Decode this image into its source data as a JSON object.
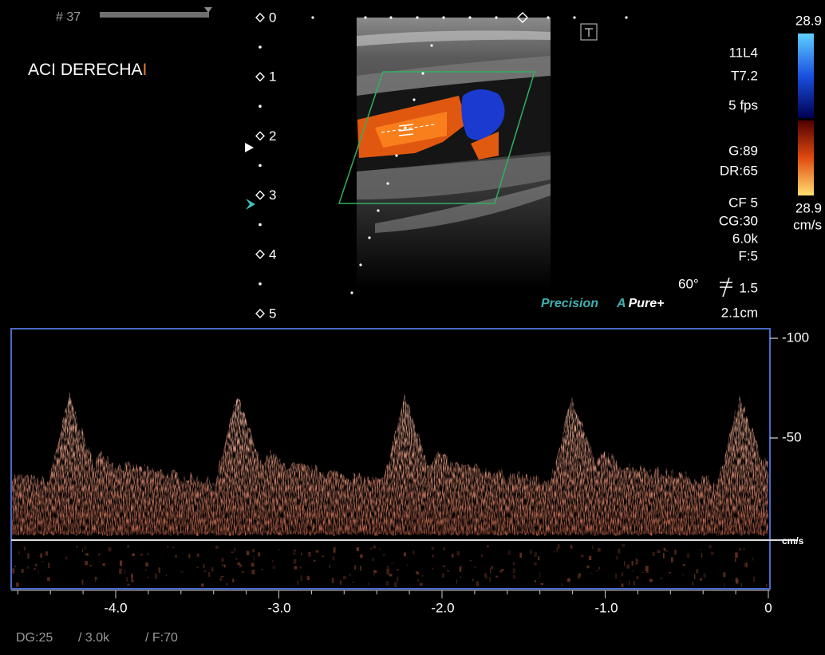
{
  "header": {
    "frame": "# 37",
    "label": "ACI DERECHA",
    "cursor": "I"
  },
  "depth_scale": [
    "0",
    "1",
    "2",
    "3",
    "4",
    "5"
  ],
  "settings": {
    "probe": "11L4",
    "preset": "T7.2",
    "frame_rate": "5 fps",
    "gain": "G:89",
    "dynamic_range": "DR:65",
    "color_freq": "CF 5",
    "color_gain": "CG:30",
    "prf": "6.0k",
    "filter": "F:5",
    "angle": "60°",
    "sample_volume": "1.5",
    "depth": "2.1cm"
  },
  "color_scale": {
    "max": "28.9",
    "min": "28.9",
    "unit": "cm/s"
  },
  "logos": {
    "precision": "Precision",
    "apure_a": "A",
    "apure": "Pure+"
  },
  "doppler": {
    "velocity_labels": [
      "-100",
      "-50"
    ],
    "velocity_unit": "cm/s",
    "time_labels": [
      "-4.0",
      "-3.0",
      "-2.0",
      "-1.0",
      "0"
    ]
  },
  "footer": {
    "doppler_gain": "DG:25",
    "prf": "/ 3.0k",
    "filter": "/ F:70"
  }
}
